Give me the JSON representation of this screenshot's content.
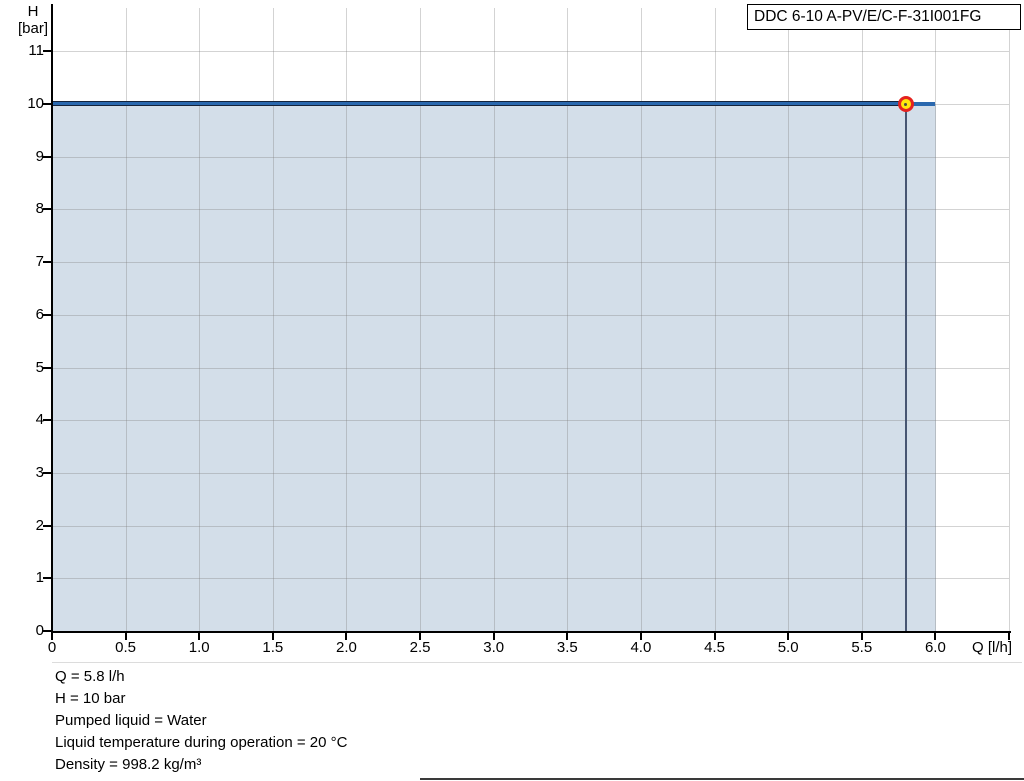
{
  "title_box": {
    "label": "DDC 6-10 A-PV/E/C-F-31I001FG"
  },
  "axes": {
    "y_title_line1": "H",
    "y_title_line2": "[bar]",
    "x_title": "Q [l/h]"
  },
  "chart_data": {
    "type": "line",
    "title": "DDC 6-10 A-PV/E/C-F-31I001FG",
    "xlabel": "Q [l/h]",
    "ylabel": "H [bar]",
    "xlim": [
      0,
      6.5
    ],
    "ylim": [
      0,
      11
    ],
    "x_ticks": [
      0,
      0.5,
      1.0,
      1.5,
      2.0,
      2.5,
      3.0,
      3.5,
      4.0,
      4.5,
      5.0,
      5.5,
      6.0
    ],
    "x_tick_labels": [
      "0",
      "0.5",
      "1.0",
      "1.5",
      "2.0",
      "2.5",
      "3.0",
      "3.5",
      "4.0",
      "4.5",
      "5.0",
      "5.5",
      "6.0"
    ],
    "y_ticks": [
      0,
      1,
      2,
      3,
      4,
      5,
      6,
      7,
      8,
      9,
      10,
      11
    ],
    "y_tick_labels": [
      "0",
      "1",
      "2",
      "3",
      "4",
      "5",
      "6",
      "7",
      "8",
      "9",
      "10",
      "11"
    ],
    "grid": true,
    "legend": "none",
    "series": [
      {
        "name": "pump-curve",
        "x": [
          0,
          6.0
        ],
        "y": [
          10,
          10
        ],
        "color": "#2a68ae",
        "highlight_color": "#14233b",
        "highlight_range_x": [
          0,
          5.8
        ]
      }
    ],
    "area_fill": {
      "under_curve": true,
      "x_range": [
        0,
        6.0
      ],
      "color": "#d3dee9"
    },
    "duty_point": {
      "q": 5.8,
      "h": 10,
      "marker_fill": "#ffe70c",
      "marker_ring": "#e42320"
    }
  },
  "info": {
    "lines": [
      "Q = 5.8 l/h",
      "H = 10 bar",
      "Pumped liquid = Water",
      "Liquid temperature during operation = 20 °C",
      "Density = 998.2 kg/m³"
    ]
  }
}
